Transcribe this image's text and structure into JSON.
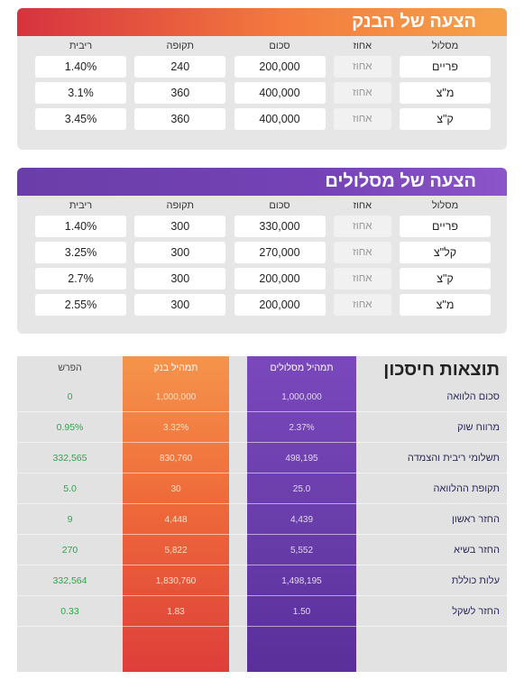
{
  "bank_offer": {
    "title": "הצעה של הבנק",
    "headers": {
      "track": "מסלול",
      "percent": "אחוז",
      "amount": "סכום",
      "period": "תקופה",
      "rate": "ריבית"
    },
    "rows": [
      {
        "track": "פריים",
        "percent": "אחוז",
        "amount": "200,000",
        "period": "240",
        "rate": "1.40%"
      },
      {
        "track": "מ\"צ",
        "percent": "אחוז",
        "amount": "400,000",
        "period": "360",
        "rate": "3.1%"
      },
      {
        "track": "ק\"צ",
        "percent": "אחוז",
        "amount": "400,000",
        "period": "360",
        "rate": "3.45%"
      }
    ]
  },
  "tracks_offer": {
    "title": "הצעה של מסלולים",
    "headers": {
      "track": "מסלול",
      "percent": "אחוז",
      "amount": "סכום",
      "period": "תקופה",
      "rate": "ריבית"
    },
    "rows": [
      {
        "track": "פריים",
        "percent": "אחוז",
        "amount": "330,000",
        "period": "300",
        "rate": "1.40%"
      },
      {
        "track": "קל\"צ",
        "percent": "אחוז",
        "amount": "270,000",
        "period": "300",
        "rate": "3.25%"
      },
      {
        "track": "ק\"צ",
        "percent": "אחוז",
        "amount": "200,000",
        "period": "300",
        "rate": "2.7%"
      },
      {
        "track": "מ\"צ",
        "percent": "אחוז",
        "amount": "200,000",
        "period": "300",
        "rate": "2.55%"
      }
    ]
  },
  "results": {
    "title": "תוצאות חיסכון",
    "col_tracks": "תמהיל מסלולים",
    "col_bank": "תמהיל בנק",
    "col_diff": "הפרש",
    "rows": [
      {
        "label": "סכום הלוואה",
        "tracks": "1,000,000",
        "bank": "1,000,000",
        "diff": "0"
      },
      {
        "label": "מרווח שוק",
        "tracks": "2.37%",
        "bank": "3.32%",
        "diff": "0.95%"
      },
      {
        "label": "תשלומי ריבית והצמדה",
        "tracks": "498,195",
        "bank": "830,760",
        "diff": "332,565"
      },
      {
        "label": "תקופת ההלוואה",
        "tracks": "25.0",
        "bank": "30",
        "diff": "5.0"
      },
      {
        "label": "החזר ראשון",
        "tracks": "4,439",
        "bank": "4,448",
        "diff": "9"
      },
      {
        "label": "החזר בשיא",
        "tracks": "5,552",
        "bank": "5,822",
        "diff": "270"
      },
      {
        "label": "עלות כוללת",
        "tracks": "1,498,195",
        "bank": "1,830,760",
        "diff": "332,564"
      },
      {
        "label": "החזר לשקל",
        "tracks": "1.50",
        "bank": "1.83",
        "diff": "0.33"
      }
    ]
  },
  "colors": {
    "bank_accent": "#f47b3e",
    "tracks_accent": "#6a3ea8",
    "diff_positive": "#2aa84a"
  }
}
